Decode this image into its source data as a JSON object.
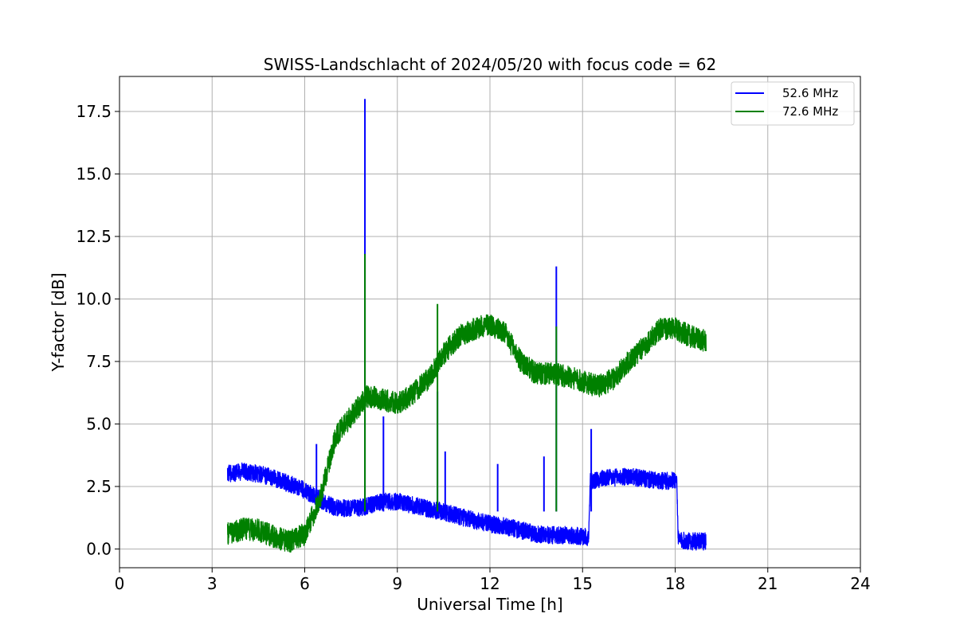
{
  "chart_data": {
    "type": "line",
    "title": "SWISS-Landschlacht of 2024/05/20 with focus code = 62",
    "xlabel": "Universal Time [h]",
    "ylabel": "Y-factor [dB]",
    "xlim": [
      0,
      24
    ],
    "ylim": [
      -0.75,
      18.9
    ],
    "xticks": [
      0,
      3,
      6,
      9,
      12,
      15,
      18,
      21,
      24
    ],
    "xtick_labels": [
      "0",
      "3",
      "6",
      "9",
      "12",
      "15",
      "18",
      "21",
      "24"
    ],
    "yticks": [
      0,
      2.5,
      5,
      7.5,
      10,
      12.5,
      15,
      17.5
    ],
    "ytick_labels": [
      "0.0",
      "2.5",
      "5.0",
      "7.5",
      "10.0",
      "12.5",
      "15.0",
      "17.5"
    ],
    "grid": true,
    "legend_position": "top-right",
    "series": [
      {
        "name": "52.6 MHz",
        "color": "#0000ff",
        "noise": 0.35,
        "x": [
          3.5,
          4.0,
          4.5,
          5.0,
          5.5,
          6.0,
          6.3,
          6.6,
          7.0,
          7.5,
          8.0,
          8.5,
          9.0,
          9.5,
          10.0,
          10.5,
          11.0,
          11.5,
          12.0,
          12.5,
          13.0,
          13.5,
          14.0,
          14.5,
          15.0,
          15.2,
          15.25,
          15.5,
          16.0,
          16.5,
          17.0,
          17.5,
          18.0,
          18.05,
          18.1,
          18.5,
          19.0
        ],
        "y": [
          3.0,
          3.1,
          3.0,
          2.85,
          2.6,
          2.35,
          2.1,
          1.9,
          1.65,
          1.6,
          1.7,
          1.9,
          1.9,
          1.75,
          1.6,
          1.5,
          1.3,
          1.15,
          1.0,
          0.9,
          0.75,
          0.6,
          0.55,
          0.55,
          0.5,
          0.45,
          2.7,
          2.8,
          2.85,
          2.9,
          2.8,
          2.7,
          2.75,
          2.8,
          0.35,
          0.3,
          0.3
        ],
        "spikes": [
          {
            "x": 6.38,
            "y": 4.2
          },
          {
            "x": 7.95,
            "y": 18.0
          },
          {
            "x": 8.55,
            "y": 5.3
          },
          {
            "x": 10.3,
            "y": 6.3
          },
          {
            "x": 10.55,
            "y": 3.9
          },
          {
            "x": 12.25,
            "y": 3.4
          },
          {
            "x": 13.75,
            "y": 3.7
          },
          {
            "x": 14.15,
            "y": 11.3
          },
          {
            "x": 15.28,
            "y": 4.8
          }
        ]
      },
      {
        "name": "72.6 MHz",
        "color": "#008000",
        "noise": 0.45,
        "x": [
          3.5,
          4.0,
          4.5,
          5.0,
          5.5,
          6.0,
          6.5,
          7.0,
          7.5,
          8.0,
          8.5,
          9.0,
          9.5,
          10.0,
          10.5,
          11.0,
          11.5,
          12.0,
          12.5,
          13.0,
          13.5,
          14.0,
          14.5,
          15.0,
          15.5,
          16.0,
          16.5,
          17.0,
          17.5,
          18.0,
          18.5,
          19.0
        ],
        "y": [
          0.6,
          0.8,
          0.75,
          0.5,
          0.3,
          0.6,
          2.0,
          4.5,
          5.3,
          6.1,
          6.0,
          5.8,
          6.2,
          6.8,
          7.8,
          8.5,
          8.8,
          9.0,
          8.6,
          7.5,
          7.0,
          7.0,
          6.9,
          6.7,
          6.5,
          6.8,
          7.5,
          8.1,
          8.8,
          8.8,
          8.5,
          8.3
        ],
        "spikes": [
          {
            "x": 7.95,
            "y": 11.8
          },
          {
            "x": 10.3,
            "y": 9.8
          },
          {
            "x": 14.15,
            "y": 8.9
          }
        ]
      }
    ]
  }
}
